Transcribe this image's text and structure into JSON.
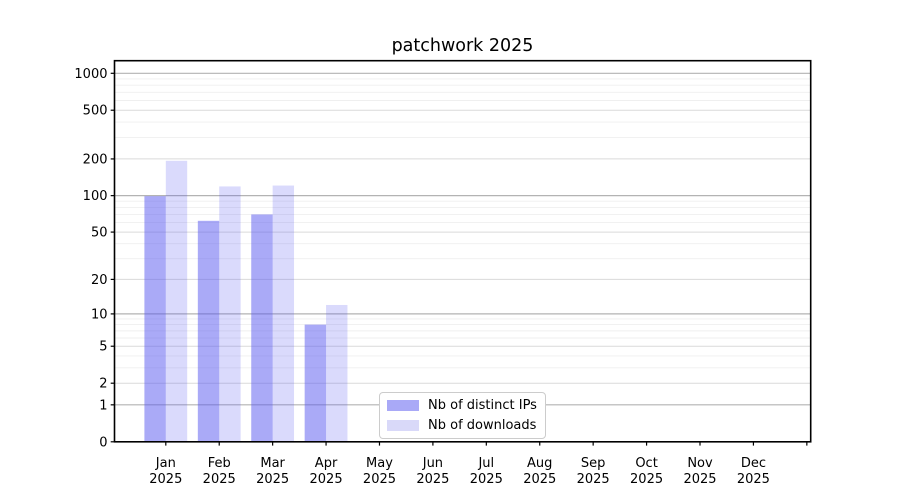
{
  "figure": {
    "title": "patchwork 2025"
  },
  "legend": {
    "items": [
      {
        "label": "Nb of distinct IPs",
        "swatch": "#a9a9f7"
      },
      {
        "label": "Nb of downloads",
        "swatch": "#d9d9f9"
      }
    ]
  },
  "axes": {
    "months": [
      "Jan",
      "Feb",
      "Mar",
      "Apr",
      "May",
      "Jun",
      "Jul",
      "Aug",
      "Sep",
      "Oct",
      "Nov",
      "Dec"
    ],
    "year": "2025",
    "y_tick_labels": [
      "0",
      "1",
      "2",
      "5",
      "10",
      "20",
      "50",
      "100",
      "200",
      "500",
      "1000"
    ]
  },
  "chart_data": {
    "type": "bar",
    "title": "patchwork 2025",
    "x_categories": [
      "Jan 2025",
      "Feb 2025",
      "Mar 2025",
      "Apr 2025",
      "May 2025",
      "Jun 2025",
      "Jul 2025",
      "Aug 2025",
      "Sep 2025",
      "Oct 2025",
      "Nov 2025",
      "Dec 2025"
    ],
    "series": [
      {
        "name": "Nb of distinct IPs",
        "color": "rgba(85,85,240,0.50)",
        "values": [
          99,
          62,
          70,
          8,
          0,
          0,
          0,
          0,
          0,
          0,
          0,
          0
        ]
      },
      {
        "name": "Nb of downloads",
        "color": "rgba(85,85,240,0.22)",
        "values": [
          193,
          119,
          121,
          12,
          0,
          0,
          0,
          0,
          0,
          0,
          0,
          0
        ]
      }
    ],
    "y_scale": "symlog (log1p)",
    "y_ticks": [
      0,
      1,
      2,
      5,
      10,
      20,
      50,
      100,
      200,
      500,
      1000
    ],
    "ylim": [
      0,
      1270
    ],
    "grid": true,
    "legend_position": "lower center inside axes"
  }
}
